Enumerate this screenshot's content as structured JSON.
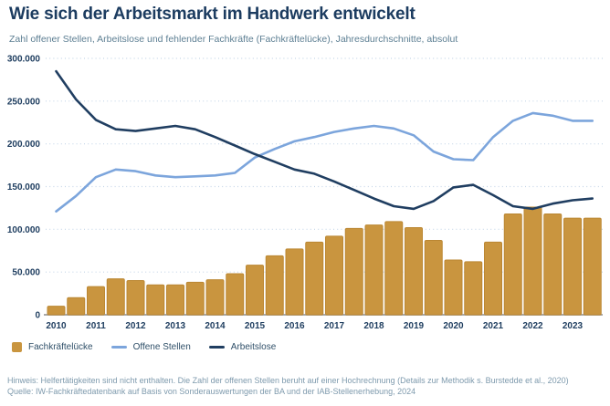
{
  "header": {
    "title": "Wie sich der Arbeitsmarkt im Handwerk entwickelt",
    "subtitle": "Zahl offener Stellen, Arbeitslose und fehlender Fachkräfte (Fachkräftelücke), Jahresdurchschnitte, absolut"
  },
  "footer": {
    "note": "Hinweis: Helfertätigkeiten sind nicht enthalten. Die Zahl der offenen Stellen beruht auf einer Hochrechnung (Details zur Methodik s. Burstedde et al., 2020)",
    "source": "Quelle: IW-Fachkräftedatenbank auf Basis von Sonderauswertungen der BA und der IAB-Stellenerhebung, 2024"
  },
  "colors": {
    "title": "#1c3c60",
    "subtitle": "#5d7f93",
    "axis_label": "#1e3d5f",
    "gridline": "#c5d6e8",
    "baseline": "#a8a8a8",
    "legend_text": "#2f4f68",
    "footer": "#7e9aad",
    "bar": "#c9953f",
    "bar_border": "#bb8733",
    "line_open_positions": "#7ca5dc",
    "line_unemployed": "#203e61"
  },
  "chart_data": {
    "type": "combo (bar + line)",
    "title": "Wie sich der Arbeitsmarkt im Handwerk entwickelt",
    "subtitle": "Zahl offener Stellen, Arbeitslose und fehlender Fachkräfte (Fachkräftelücke), Jahresdurchschnitte, absolut",
    "categories": [
      "2010",
      "2011",
      "2012",
      "2013",
      "2014",
      "2015",
      "2016",
      "2017",
      "2018",
      "2019",
      "2020",
      "2021",
      "2022",
      "2023"
    ],
    "points_per_year": 2,
    "ylim": [
      0,
      300000
    ],
    "grid": "horizontal dotted",
    "legend_position": "bottom-left",
    "yticks": [
      {
        "value": 0,
        "label": "0"
      },
      {
        "value": 50000,
        "label": "50.000"
      },
      {
        "value": 100000,
        "label": "100.000"
      },
      {
        "value": 150000,
        "label": "150.000"
      },
      {
        "value": 200000,
        "label": "200.000"
      },
      {
        "value": 250000,
        "label": "250.000"
      },
      {
        "value": 300000,
        "label": "300.000"
      }
    ],
    "series": [
      {
        "name": "Fachkräftelücke",
        "type": "bar",
        "color": "#c9953f",
        "values": [
          10000,
          20000,
          33000,
          42000,
          40000,
          35000,
          35000,
          38000,
          41000,
          48000,
          58000,
          69000,
          77000,
          85000,
          92000,
          101000,
          105000,
          109000,
          102000,
          87000,
          64000,
          62000,
          85000,
          118000,
          126000,
          118000,
          113000,
          113000
        ]
      },
      {
        "name": "Offene Stellen",
        "type": "line",
        "color": "#7ca5dc",
        "values": [
          121000,
          139000,
          161000,
          170000,
          168000,
          163000,
          161000,
          162000,
          163000,
          166000,
          184000,
          194000,
          203000,
          208000,
          214000,
          218000,
          221000,
          218000,
          210000,
          191000,
          182000,
          181000,
          208000,
          227000,
          236000,
          233000,
          227000,
          227000
        ]
      },
      {
        "name": "Arbeitslose",
        "type": "line",
        "color": "#203e61",
        "values": [
          285000,
          252000,
          228000,
          217000,
          215000,
          218000,
          221000,
          217000,
          208000,
          198000,
          188000,
          179000,
          170000,
          165000,
          156000,
          146000,
          136000,
          127000,
          124000,
          133000,
          149000,
          152000,
          140000,
          127000,
          124000,
          130000,
          134000,
          136000
        ]
      }
    ]
  }
}
